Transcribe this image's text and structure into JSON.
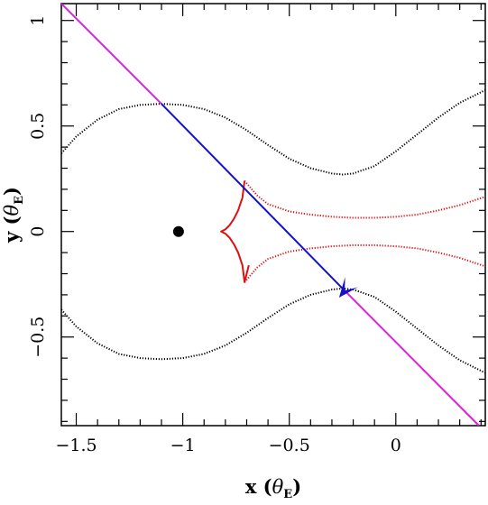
{
  "chart_data": {
    "type": "line",
    "title": "",
    "xlabel": "x (θ_E)",
    "ylabel": "y (θ_E)",
    "xlabel_parts": {
      "var": "x",
      "greek": "θ",
      "sub": "E"
    },
    "ylabel_parts": {
      "var": "y",
      "greek": "θ",
      "sub": "E"
    },
    "xlim": [
      -1.57,
      0.42
    ],
    "ylim": [
      -0.92,
      1.08
    ],
    "xticks": [
      {
        "value": -1.5,
        "label": "−1.5"
      },
      {
        "value": -1.0,
        "label": "−1"
      },
      {
        "value": -0.5,
        "label": "−0.5"
      },
      {
        "value": 0.0,
        "label": "0"
      }
    ],
    "yticks": [
      {
        "value": -0.5,
        "label": "−0.5"
      },
      {
        "value": 0.0,
        "label": "0"
      },
      {
        "value": 0.5,
        "label": "0.5"
      },
      {
        "value": 1.0,
        "label": "1"
      }
    ],
    "grid": false,
    "legend": "none",
    "series": [
      {
        "id": "critical-curve-upper",
        "color": "#000000",
        "style": "dotted",
        "x": [
          -1.57,
          -1.5,
          -1.4,
          -1.3,
          -1.2,
          -1.1,
          -1.0,
          -0.9,
          -0.8,
          -0.7,
          -0.6,
          -0.5,
          -0.4,
          -0.3,
          -0.25,
          -0.2,
          -0.1,
          0.0,
          0.1,
          0.2,
          0.3,
          0.42
        ],
        "y": [
          0.37,
          0.45,
          0.53,
          0.58,
          0.6,
          0.605,
          0.6,
          0.58,
          0.54,
          0.48,
          0.41,
          0.345,
          0.3,
          0.275,
          0.27,
          0.275,
          0.31,
          0.38,
          0.46,
          0.54,
          0.61,
          0.67
        ]
      },
      {
        "id": "critical-curve-lower",
        "color": "#000000",
        "style": "dotted",
        "x": [
          -1.57,
          -1.5,
          -1.4,
          -1.3,
          -1.2,
          -1.1,
          -1.0,
          -0.9,
          -0.8,
          -0.7,
          -0.6,
          -0.5,
          -0.4,
          -0.3,
          -0.25,
          -0.2,
          -0.1,
          0.0,
          0.1,
          0.2,
          0.3,
          0.42
        ],
        "y": [
          -0.37,
          -0.45,
          -0.53,
          -0.58,
          -0.6,
          -0.605,
          -0.6,
          -0.58,
          -0.54,
          -0.48,
          -0.41,
          -0.345,
          -0.3,
          -0.275,
          -0.27,
          -0.275,
          -0.31,
          -0.38,
          -0.46,
          -0.54,
          -0.61,
          -0.67
        ]
      },
      {
        "id": "caustic-cusps",
        "color": "#dd1111",
        "style": "solid",
        "x": [
          -0.71,
          -0.72,
          -0.74,
          -0.76,
          -0.78,
          -0.8,
          -0.82,
          -0.8,
          -0.78,
          -0.76,
          -0.74,
          -0.72,
          -0.71,
          -0.7,
          -0.69
        ],
        "y": [
          0.24,
          0.16,
          0.1,
          0.06,
          0.03,
          0.01,
          0.0,
          -0.01,
          -0.03,
          -0.06,
          -0.1,
          -0.16,
          -0.24,
          -0.2,
          -0.16
        ]
      },
      {
        "id": "caustic-upper-branch",
        "color": "#dd1111",
        "style": "dotted",
        "x": [
          -0.71,
          -0.65,
          -0.6,
          -0.5,
          -0.4,
          -0.3,
          -0.2,
          -0.1,
          0.0,
          0.1,
          0.2,
          0.3,
          0.42
        ],
        "y": [
          0.24,
          0.17,
          0.13,
          0.095,
          0.08,
          0.07,
          0.065,
          0.065,
          0.07,
          0.08,
          0.1,
          0.125,
          0.165
        ]
      },
      {
        "id": "caustic-lower-branch",
        "color": "#dd1111",
        "style": "dotted",
        "x": [
          -0.71,
          -0.65,
          -0.6,
          -0.5,
          -0.4,
          -0.3,
          -0.2,
          -0.1,
          0.0,
          0.1,
          0.2,
          0.3,
          0.42
        ],
        "y": [
          -0.24,
          -0.17,
          -0.13,
          -0.095,
          -0.08,
          -0.07,
          -0.065,
          -0.065,
          -0.07,
          -0.08,
          -0.1,
          -0.125,
          -0.165
        ]
      },
      {
        "id": "source-trajectory-magenta",
        "color": "#dd22dd",
        "style": "solid",
        "x": [
          -1.57,
          -1.1
        ],
        "y": [
          1.08,
          0.605
        ]
      },
      {
        "id": "source-trajectory-blue",
        "color": "#1111cc",
        "style": "solid",
        "x": [
          -1.1,
          -0.25
        ],
        "y": [
          0.605,
          -0.27
        ]
      },
      {
        "id": "source-trajectory-magenta-end",
        "color": "#dd22dd",
        "style": "solid",
        "x": [
          -0.25,
          0.39
        ],
        "y": [
          -0.27,
          -0.92
        ]
      }
    ],
    "points": [
      {
        "id": "lens-mass",
        "x": -1.02,
        "y": 0.0,
        "color": "#000000"
      }
    ],
    "arrow": {
      "x": -0.24,
      "y": -0.28,
      "dx": -0.04,
      "dy": -0.05,
      "color": "#1111cc"
    }
  }
}
